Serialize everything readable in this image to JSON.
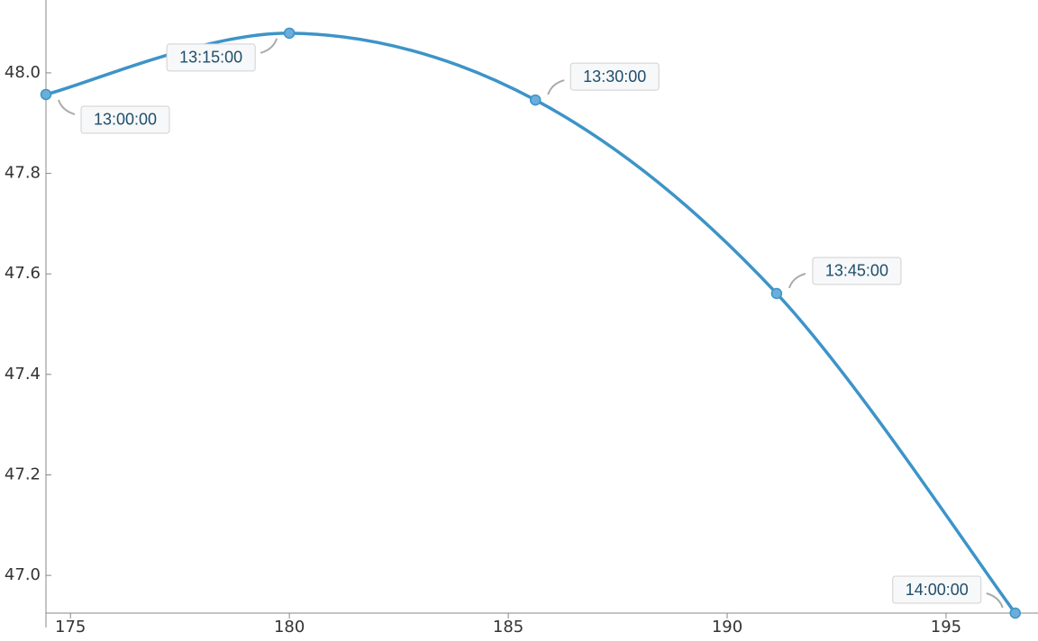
{
  "chart_data": {
    "type": "line",
    "x": [
      174.44,
      180.0,
      185.62,
      191.13,
      196.58
    ],
    "values": [
      47.957,
      48.079,
      47.946,
      47.561,
      46.925
    ],
    "point_labels": [
      "13:00:00",
      "13:15:00",
      "13:30:00",
      "13:45:00",
      "14:00:00"
    ],
    "color": "#3d94c8",
    "xlim": [
      174.44,
      197.1
    ],
    "ylim": [
      46.925,
      48.145
    ],
    "xticks": [
      175,
      180,
      185,
      190,
      195
    ],
    "yticks": [
      {
        "value": 47.0,
        "label": "47.0"
      },
      {
        "value": 47.2,
        "label": "47.2"
      },
      {
        "value": 47.4,
        "label": "47.4"
      },
      {
        "value": 47.6,
        "label": "47.6"
      },
      {
        "value": 47.8,
        "label": "47.8"
      },
      {
        "value": 48.0,
        "label": "48.0"
      }
    ]
  }
}
